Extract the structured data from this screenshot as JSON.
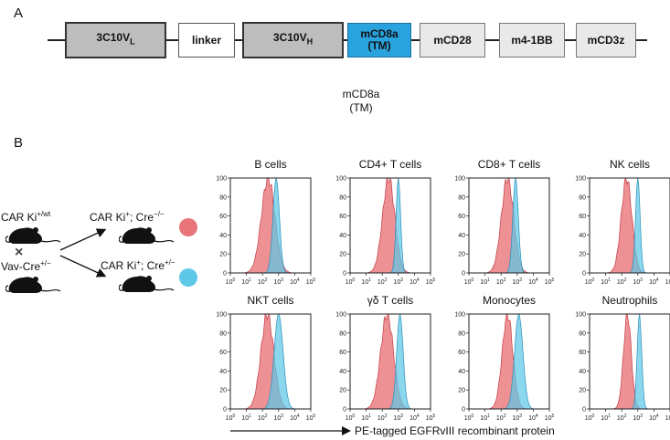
{
  "panel_a": {
    "letter": "A",
    "segments": [
      {
        "name": "3c10vl",
        "main": "3C10V",
        "sub": "L",
        "style": "b-gray"
      },
      {
        "name": "linker",
        "main": "linker",
        "sub": "",
        "style": "b-white"
      },
      {
        "name": "3c10vh",
        "main": "3C10V",
        "sub": "H",
        "style": "b-gray"
      },
      {
        "name": "mcd8a-tm",
        "main": "mCD8a",
        "line2": "(TM)",
        "sub": "",
        "style": "b-blue"
      },
      {
        "name": "mcd28",
        "main": "mCD28",
        "sub": "",
        "style": "b-light"
      },
      {
        "name": "m4-1bb",
        "main": "m4-1BB",
        "sub": "",
        "style": "b-light"
      },
      {
        "name": "mcd3z",
        "main": "mCD3z",
        "sub": "",
        "style": "b-light"
      }
    ],
    "note_line1": "mCD8a",
    "note_line2": "(TM)"
  },
  "panel_b": {
    "letter": "B",
    "parent1": "CAR Ki",
    "parent1_sup": "+/wt",
    "cross_symbol": "×",
    "parent2": "Vav-Cre",
    "parent2_sup": "+/−",
    "offspring1": "CAR Ki",
    "offspring1_sup1": "+",
    "offspring1_mid": "; Cre",
    "offspring1_sup2": "−/−",
    "offspring2": "CAR Ki",
    "offspring2_sup1": "+",
    "offspring2_mid": "; Cre",
    "offspring2_sup2": "+/−",
    "color_neg": "#e8757a",
    "color_pos": "#5ec8e8",
    "x_axis_label": "PE-tagged EGFRvIII recombinant protein",
    "y_ticks": [
      "100",
      "80",
      "60",
      "40",
      "20",
      "0"
    ],
    "x_tick_exponents": [
      "0",
      "1",
      "2",
      "3",
      "4",
      "5"
    ],
    "x_tick_base": "10"
  },
  "chart_data": {
    "type": "area",
    "title": "",
    "xlabel": "PE-tagged EGFRvIII recombinant protein",
    "ylabel": "",
    "x_scale": "log10",
    "xlim": [
      1,
      100000
    ],
    "ylim": [
      0,
      100
    ],
    "panels": [
      {
        "title": "B cells",
        "series": [
          {
            "name": "CAR Ki+; Cre−/−",
            "peak_log10": 2.35,
            "width": 0.42
          },
          {
            "name": "CAR Ki+; Cre+/−",
            "peak_log10": 2.85,
            "width": 0.2
          }
        ]
      },
      {
        "title": "CD4+ T cells",
        "series": [
          {
            "name": "CAR Ki+; Cre−/−",
            "peak_log10": 2.4,
            "width": 0.38
          },
          {
            "name": "CAR Ki+; Cre+/−",
            "peak_log10": 3.0,
            "width": 0.14
          }
        ]
      },
      {
        "title": "CD8+ T cells",
        "series": [
          {
            "name": "CAR Ki+; Cre−/−",
            "peak_log10": 2.4,
            "width": 0.38
          },
          {
            "name": "CAR Ki+; Cre+/−",
            "peak_log10": 2.9,
            "width": 0.17
          }
        ]
      },
      {
        "title": "NK cells",
        "series": [
          {
            "name": "CAR Ki+; Cre−/−",
            "peak_log10": 2.3,
            "width": 0.33
          },
          {
            "name": "CAR Ki+; Cre+/−",
            "peak_log10": 3.0,
            "width": 0.14
          }
        ]
      },
      {
        "title": "NKT cells",
        "series": [
          {
            "name": "CAR Ki+; Cre−/−",
            "peak_log10": 2.3,
            "width": 0.4
          },
          {
            "name": "CAR Ki+; Cre+/−",
            "peak_log10": 3.0,
            "width": 0.28
          }
        ]
      },
      {
        "title": "γδ T cells",
        "series": [
          {
            "name": "CAR Ki+; Cre−/−",
            "peak_log10": 2.3,
            "width": 0.4
          },
          {
            "name": "CAR Ki+; Cre+/−",
            "peak_log10": 3.1,
            "width": 0.2
          }
        ]
      },
      {
        "title": "Monocytes",
        "series": [
          {
            "name": "CAR Ki+; Cre−/−",
            "peak_log10": 2.4,
            "width": 0.33
          },
          {
            "name": "CAR Ki+; Cre+/−",
            "peak_log10": 3.1,
            "width": 0.26
          }
        ]
      },
      {
        "title": "Neutrophils",
        "series": [
          {
            "name": "CAR Ki+; Cre−/−",
            "peak_log10": 2.35,
            "width": 0.24
          },
          {
            "name": "CAR Ki+; Cre+/−",
            "peak_log10": 3.1,
            "width": 0.14
          }
        ]
      }
    ]
  }
}
